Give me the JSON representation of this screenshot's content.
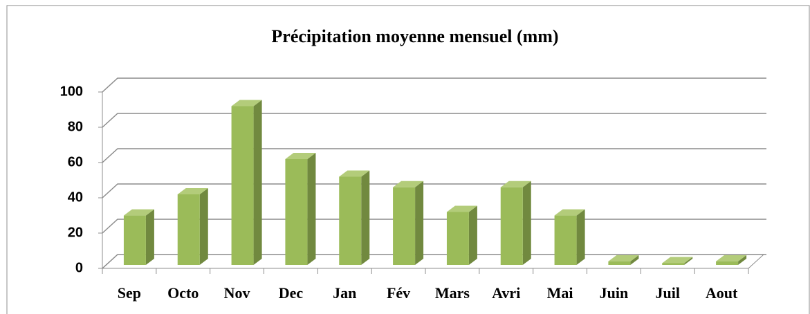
{
  "chart_data": {
    "type": "bar3d",
    "title": "Précipitation moyenne mensuel  (mm)",
    "categories": [
      "Sep",
      "Octo",
      "Nov",
      "Dec",
      "Jan",
      "Fév",
      "Mars",
      "Avri",
      "Mai",
      "Juin",
      "Juil",
      "Aout"
    ],
    "values": [
      28,
      40,
      90,
      60,
      50,
      44,
      30,
      44,
      28,
      2,
      1,
      2
    ],
    "color": "#9bbb59",
    "ylim": [
      0,
      100
    ],
    "yticks": [
      0,
      20,
      40,
      60,
      80,
      100
    ],
    "grid": true
  }
}
